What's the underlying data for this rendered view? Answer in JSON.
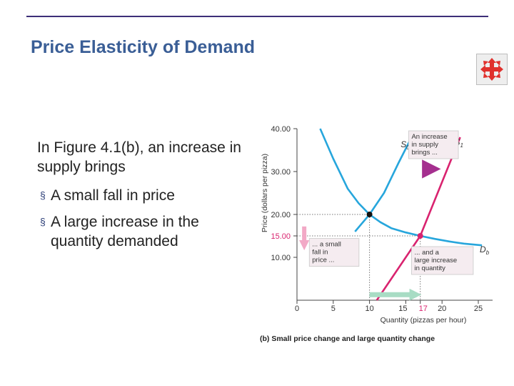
{
  "slide": {
    "title": "Price Elasticity of Demand",
    "intro": "In Figure 4.1(b), an increase in supply brings",
    "bullet_marker": "§",
    "bullets": [
      "A small fall in price",
      "A large increase in the quantity demanded"
    ]
  },
  "nav_button": {
    "icon": "move-arrows-icon",
    "color": "#e0312d"
  },
  "colors": {
    "title": "#3a5e96",
    "rule": "#3d2f78",
    "demand": "#27a6dc",
    "supply": "#d9236f",
    "callout_bg": "#f5ecf0",
    "price_arrow": "#f2a9c6",
    "quantity_arrow": "#a8dcc4",
    "supply_arrow": "#36a9e0"
  },
  "chart_data": {
    "type": "line",
    "caption": "(b) Small price change and large quantity change",
    "xlabel": "Quantity (pizzas per hour)",
    "ylabel": "Price (dollars per pizza)",
    "xlim": [
      0,
      25
    ],
    "ylim": [
      0,
      40
    ],
    "xticks": [
      0,
      5,
      10,
      15,
      17,
      20,
      25
    ],
    "xtick_labels": [
      "0",
      "5",
      "10",
      "15",
      "17",
      "20",
      "25"
    ],
    "yticks": [
      10,
      15,
      20,
      30,
      40
    ],
    "ytick_labels": [
      "10.00",
      "15.00",
      "20.00",
      "30.00",
      "40.00"
    ],
    "highlight_tick": {
      "x": "17",
      "y": "15.00"
    },
    "series": [
      {
        "name": "Db",
        "label_main": "D",
        "label_sub": "b",
        "x": [
          3.2,
          5,
          7,
          8.5,
          10,
          11.5,
          13,
          15,
          17,
          19,
          21,
          23,
          25.5
        ],
        "y": [
          40,
          33,
          26,
          22.6,
          20,
          18.2,
          16.8,
          15.8,
          15,
          14.3,
          13.7,
          13.2,
          12.8
        ]
      },
      {
        "name": "S0",
        "label_main": "S",
        "label_sub": "0",
        "x": [
          8,
          10,
          12,
          14,
          15.8
        ],
        "y": [
          16,
          20,
          25,
          32,
          38
        ]
      },
      {
        "name": "S1",
        "label_main": "S",
        "label_sub": "1",
        "x": [
          11,
          17,
          22.5
        ],
        "y": [
          0,
          15,
          38
        ]
      }
    ],
    "points": [
      {
        "x": 10,
        "y": 20
      },
      {
        "x": 17,
        "y": 15
      }
    ],
    "annotations": [
      {
        "lines": [
          "An increase",
          "in supply",
          "brings ..."
        ],
        "x": 15.4,
        "y": 39.5
      },
      {
        "lines": [
          "... a small",
          "fall in",
          "price ..."
        ],
        "x": 1.7,
        "y": 14.4
      },
      {
        "lines": [
          "... and a",
          "large increase",
          "in quantity"
        ],
        "x": 15.8,
        "y": 12.5
      }
    ],
    "arrows": [
      {
        "name": "supply-shift-arrow",
        "from": [
          12,
          30.6
        ],
        "to": [
          18.8,
          30.6
        ]
      },
      {
        "name": "price-fall-arrow",
        "from": [
          1,
          17.2
        ],
        "to": [
          1,
          12.6
        ]
      },
      {
        "name": "quantity-increase-arrow",
        "from": [
          10,
          1.3
        ],
        "to": [
          16.5,
          1.3
        ]
      }
    ]
  }
}
